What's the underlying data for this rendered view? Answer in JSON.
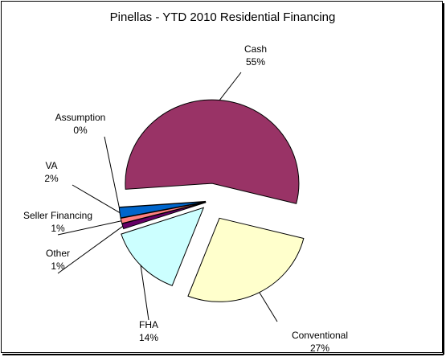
{
  "chart_data": {
    "type": "pie",
    "title": "Pinellas - YTD 2010 Residential Financing",
    "categories": [
      "Cash",
      "Conventional",
      "FHA",
      "Other",
      "Seller Financing",
      "VA",
      "Assumption"
    ],
    "values": [
      55,
      27,
      14,
      1,
      1,
      2,
      0
    ],
    "value_labels": [
      "55%",
      "27%",
      "14%",
      "1%",
      "1%",
      "2%",
      "0%"
    ],
    "colors": [
      "#993366",
      "#FFFFCC",
      "#CCFFFF",
      "#660066",
      "#FF8080",
      "#0066CC",
      "#CCCCFF"
    ]
  }
}
